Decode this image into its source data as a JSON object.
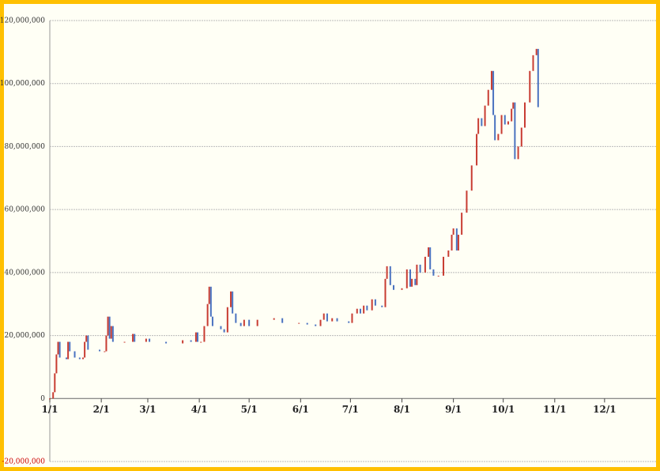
{
  "chart_data": {
    "type": "change-bar",
    "x": [
      0,
      2,
      3,
      4,
      5,
      6,
      10,
      11,
      12,
      15,
      18,
      20,
      21,
      22,
      23,
      30,
      33,
      34,
      35,
      36,
      37,
      38,
      45,
      50,
      51,
      58,
      60,
      70,
      80,
      85,
      88,
      89,
      91,
      93,
      95,
      96,
      97,
      98,
      103,
      105,
      107,
      109,
      110,
      112,
      115,
      117,
      120,
      125,
      135,
      140,
      150,
      155,
      160,
      163,
      165,
      167,
      170,
      173,
      180,
      182,
      185,
      187,
      189,
      191,
      194,
      196,
      200,
      202,
      203,
      205,
      207,
      212,
      215,
      217,
      218,
      220,
      221,
      223,
      226,
      228,
      229,
      231,
      234,
      237,
      240,
      242,
      243,
      245,
      246,
      248,
      251,
      254,
      257,
      258,
      260,
      262,
      264,
      266,
      267,
      268,
      270,
      272,
      274,
      276,
      278,
      279,
      280,
      282,
      284,
      286,
      289,
      291,
      293,
      294
    ],
    "values": [
      0,
      2000000,
      8000000,
      14000000,
      18000000,
      13000000,
      12500000,
      18000000,
      15000000,
      13000000,
      12500000,
      13000000,
      18000000,
      20000000,
      15500000,
      15000000,
      15000000,
      20000000,
      26000000,
      19000000,
      23000000,
      18000000,
      18000000,
      20500000,
      18000000,
      19000000,
      18000000,
      17500000,
      18500000,
      18000000,
      21000000,
      18000000,
      18000000,
      23000000,
      30000000,
      35500000,
      26000000,
      23000000,
      22000000,
      21000000,
      29000000,
      34000000,
      27000000,
      24000000,
      23000000,
      25000000,
      23000000,
      25000000,
      25500000,
      24000000,
      24000000,
      23500000,
      23000000,
      25000000,
      27000000,
      24500000,
      25500000,
      24500000,
      24000000,
      27000000,
      28500000,
      27000000,
      29500000,
      28000000,
      31500000,
      29500000,
      29000000,
      38000000,
      42000000,
      36000000,
      34500000,
      35000000,
      41000000,
      35500000,
      38000000,
      36000000,
      42500000,
      40000000,
      45000000,
      48000000,
      41000000,
      39000000,
      39000000,
      45000000,
      47000000,
      52000000,
      54000000,
      47000000,
      52000000,
      59000000,
      66000000,
      74000000,
      84000000,
      89000000,
      86500000,
      93000000,
      98000000,
      104000000,
      90000000,
      82000000,
      84000000,
      90000000,
      87000000,
      88000000,
      92000000,
      94000000,
      76000000,
      80000000,
      86000000,
      94000000,
      104000000,
      109000000,
      111000000,
      92500000
    ],
    "up_color": "#c83c32",
    "down_color": "#4a72c0",
    "xlim": [
      0,
      365
    ],
    "xticks": [
      {
        "value": 0,
        "label": "1/1"
      },
      {
        "value": 31,
        "label": "2/1"
      },
      {
        "value": 59,
        "label": "3/1"
      },
      {
        "value": 90,
        "label": "4/1"
      },
      {
        "value": 120,
        "label": "5/1"
      },
      {
        "value": 151,
        "label": "6/1"
      },
      {
        "value": 181,
        "label": "7/1"
      },
      {
        "value": 212,
        "label": "8/1"
      },
      {
        "value": 243,
        "label": "9/1"
      },
      {
        "value": 273,
        "label": "10/1"
      },
      {
        "value": 304,
        "label": "11/1"
      },
      {
        "value": 334,
        "label": "12/1"
      }
    ],
    "ylim": [
      -20000000,
      120000000
    ],
    "yticks": [
      {
        "value": -20000000,
        "label": "-20,000,000"
      },
      {
        "value": 0,
        "label": "0"
      },
      {
        "value": 20000000,
        "label": "20,000,000"
      },
      {
        "value": 40000000,
        "label": "40,000,000"
      },
      {
        "value": 60000000,
        "label": "60,000,000"
      },
      {
        "value": 80000000,
        "label": "80,000,000"
      },
      {
        "value": 100000000,
        "label": "100,000,000"
      },
      {
        "value": 120000000,
        "label": "120,000,000"
      }
    ],
    "negative_label_color": "#cc0000",
    "grid": true
  }
}
